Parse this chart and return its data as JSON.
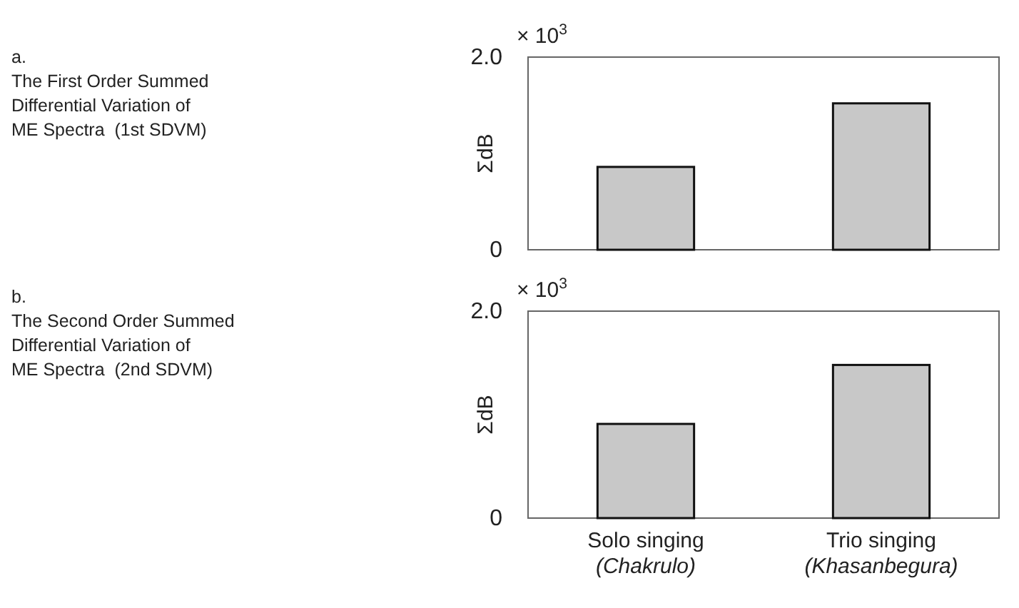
{
  "chart_data": [
    {
      "type": "other",
      "title": "a.",
      "subtitle": "The First Order Summed\nDifferential Variation of\nME Spectra  (1st SDVM)"
    },
    {
      "type": "bar",
      "ylabel": "ΣdB",
      "annotations": [
        "× 10$^{3}$"
      ],
      "categories": [
        null,
        null
      ],
      "values": [
        0.86,
        1.52
      ],
      "color": "#c8c8c8",
      "ylim": [
        0,
        2
      ],
      "yticks": [
        0,
        {
          "value": 2,
          "label": "2.0"
        }
      ]
    },
    {
      "type": "other",
      "title": "b.",
      "subtitle": "The Second Order Summed\nDifferential Variation of\nME Spectra  (2nd SDVM)"
    },
    {
      "type": "bar",
      "ylabel": "ΣdB",
      "annotations": [
        "× 10$^{3}$"
      ],
      "categories": [
        "Solo singing (Chakrulo)",
        "Trio singing (Khasanbegura)"
      ],
      "values": [
        0.91,
        1.48
      ],
      "color": "#c8c8c8",
      "ylim": [
        0,
        2
      ],
      "yticks": [
        0,
        {
          "value": 2,
          "label": "2.0"
        }
      ]
    }
  ]
}
